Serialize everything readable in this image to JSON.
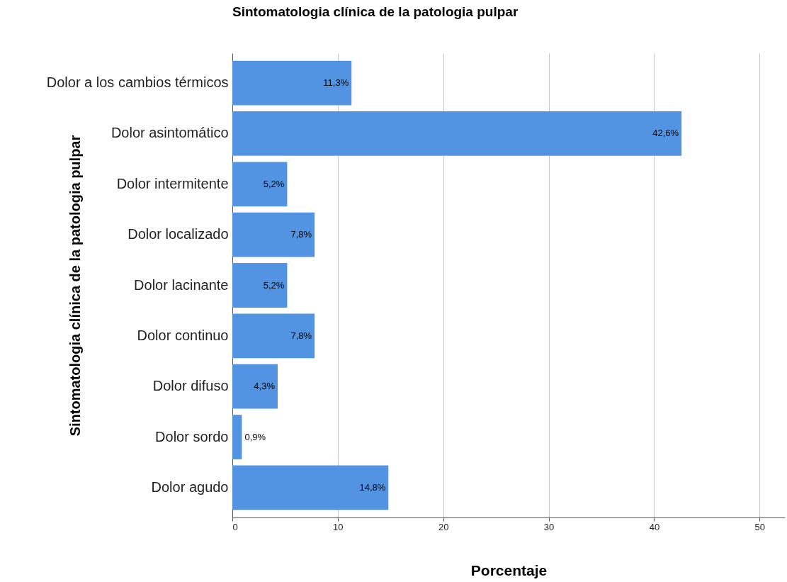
{
  "chart_data": {
    "type": "bar",
    "orientation": "horizontal",
    "title": "Sintomatologia clínica de la patologia pulpar",
    "xlabel": "Porcentaje",
    "ylabel": "Sintomatologia clínica de la patologia pulpar",
    "categories": [
      "Dolor a los cambios térmicos",
      "Dolor asintomático",
      "Dolor intermitente",
      "Dolor localizado",
      "Dolor lacinante",
      "Dolor continuo",
      "Dolor difuso",
      "Dolor sordo",
      "Dolor agudo"
    ],
    "values": [
      11.3,
      42.6,
      5.2,
      7.8,
      5.2,
      7.8,
      4.3,
      0.9,
      14.8
    ],
    "value_labels": [
      "11,3%",
      "42,6%",
      "5,2%",
      "7,8%",
      "5,2%",
      "7,8%",
      "4,3%",
      "0,9%",
      "14,8%"
    ],
    "color": "#5294e2",
    "xlim": [
      0,
      52.4
    ],
    "xticks": [
      0,
      10,
      20,
      30,
      40,
      50
    ],
    "grid": "x",
    "legend": false
  }
}
